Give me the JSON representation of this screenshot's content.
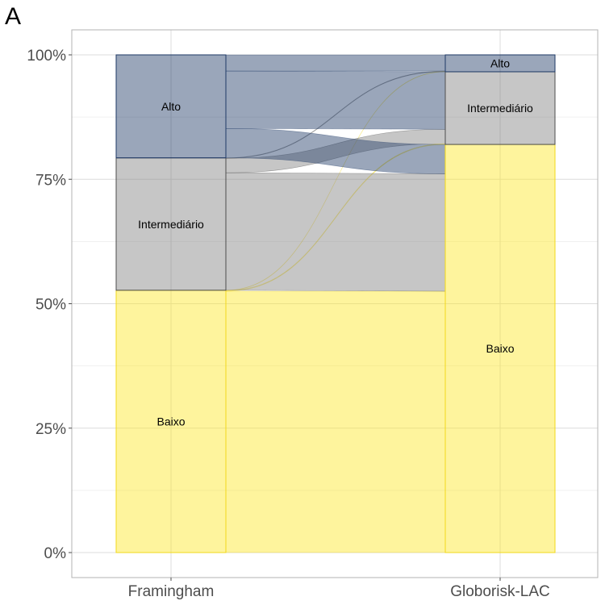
{
  "panel_tag": "A",
  "chart_data": {
    "type": "alluvial",
    "title": "",
    "xlabel": "",
    "ylabel": "",
    "ylim": [
      0,
      100
    ],
    "y_ticks": [
      0,
      25,
      50,
      75,
      100
    ],
    "y_tick_labels": [
      "0%",
      "25%",
      "50%",
      "75%",
      "100%"
    ],
    "grid": true,
    "axes": [
      "Framingham",
      "Globorisk-LAC"
    ],
    "categories": [
      "Baixo",
      "Intermediário",
      "Alto"
    ],
    "colors": {
      "Baixo": "#fde725",
      "Intermediário": "#808080",
      "Alto": "#1f3a66",
      "Baixo_edge": "#f2d81a",
      "Intermediário_edge": "#4d4d4d",
      "Alto_edge": "#1f3a66"
    },
    "strata": {
      "Framingham": [
        {
          "name": "Baixo",
          "percent": 52.7
        },
        {
          "name": "Intermediário",
          "percent": 26.6
        },
        {
          "name": "Alto",
          "percent": 20.7
        }
      ],
      "Globorisk-LAC": [
        {
          "name": "Baixo",
          "percent": 82.0
        },
        {
          "name": "Intermediário",
          "percent": 14.6
        },
        {
          "name": "Alto",
          "percent": 3.4
        }
      ]
    },
    "flows": [
      {
        "from": "Baixo",
        "to": "Baixo",
        "percent": 52.5
      },
      {
        "from": "Baixo",
        "to": "Intermediário",
        "percent": 0.15
      },
      {
        "from": "Baixo",
        "to": "Alto",
        "percent": 0.05
      },
      {
        "from": "Intermediário",
        "to": "Baixo",
        "percent": 23.6
      },
      {
        "from": "Intermediário",
        "to": "Intermediário",
        "percent": 2.9
      },
      {
        "from": "Intermediário",
        "to": "Alto",
        "percent": 0.1
      },
      {
        "from": "Alto",
        "to": "Baixo",
        "percent": 5.9
      },
      {
        "from": "Alto",
        "to": "Intermediário",
        "percent": 11.55
      },
      {
        "from": "Alto",
        "to": "Alto",
        "percent": 3.25
      }
    ]
  }
}
